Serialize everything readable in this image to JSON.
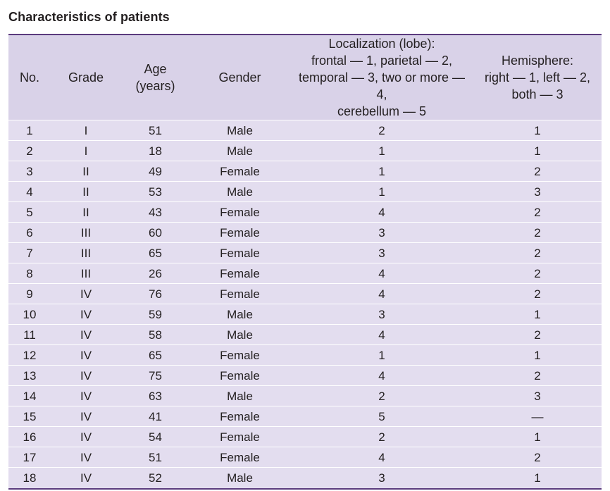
{
  "title": "Characteristics of patients",
  "headers": {
    "no": "No.",
    "grade": "Grade",
    "age_line1": "Age",
    "age_line2": "(years)",
    "gender": "Gender",
    "loc_line1": "Localization (lobe):",
    "loc_line2": "frontal — 1, parietal — 2,",
    "loc_line3": "temporal — 3, two or more — 4,",
    "loc_line4": "cerebellum — 5",
    "hemi_line1": "Hemisphere:",
    "hemi_line2": "right — 1, left — 2,",
    "hemi_line3": "both — 3"
  },
  "rows": [
    [
      "1",
      "I",
      "51",
      "Male",
      "2",
      "1"
    ],
    [
      "2",
      "I",
      "18",
      "Male",
      "1",
      "1"
    ],
    [
      "3",
      "II",
      "49",
      "Female",
      "1",
      "2"
    ],
    [
      "4",
      "II",
      "53",
      "Male",
      "1",
      "3"
    ],
    [
      "5",
      "II",
      "43",
      "Female",
      "4",
      "2"
    ],
    [
      "6",
      "III",
      "60",
      "Female",
      "3",
      "2"
    ],
    [
      "7",
      "III",
      "65",
      "Female",
      "3",
      "2"
    ],
    [
      "8",
      "III",
      "26",
      "Female",
      "4",
      "2"
    ],
    [
      "9",
      "IV",
      "76",
      "Female",
      "4",
      "2"
    ],
    [
      "10",
      "IV",
      "59",
      "Male",
      "3",
      "1"
    ],
    [
      "11",
      "IV",
      "58",
      "Male",
      "4",
      "2"
    ],
    [
      "12",
      "IV",
      "65",
      "Female",
      "1",
      "1"
    ],
    [
      "13",
      "IV",
      "75",
      "Female",
      "4",
      "2"
    ],
    [
      "14",
      "IV",
      "63",
      "Male",
      "2",
      "3"
    ],
    [
      "15",
      "IV",
      "41",
      "Female",
      "5",
      "—"
    ],
    [
      "16",
      "IV",
      "54",
      "Female",
      "2",
      "1"
    ],
    [
      "17",
      "IV",
      "51",
      "Female",
      "4",
      "2"
    ],
    [
      "18",
      "IV",
      "52",
      "Male",
      "3",
      "1"
    ]
  ],
  "colors": {
    "header_bg": "#d9d2e8",
    "row_bg": "#e3ddef",
    "rule": "#5b3b7e"
  }
}
